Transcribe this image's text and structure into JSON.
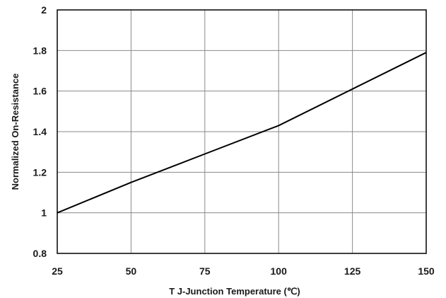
{
  "chart_data": {
    "type": "line",
    "xlabel": "T J-Junction Temperature (℃)",
    "ylabel": "Normalized On-Resistance",
    "xlim": [
      25,
      150
    ],
    "ylim": [
      0.8,
      2.0
    ],
    "xticks": [
      25,
      50,
      75,
      100,
      125,
      150
    ],
    "yticks": [
      0.8,
      1.0,
      1.2,
      1.4,
      1.6,
      1.8,
      2.0
    ],
    "xtick_labels": [
      "25",
      "50",
      "75",
      "100",
      "125",
      "150"
    ],
    "ytick_labels": [
      "0.8",
      "1",
      "1.2",
      "1.4",
      "1.6",
      "1.8",
      "2"
    ],
    "grid": true,
    "series": [
      {
        "x": [
          25,
          50,
          75,
          100,
          125,
          150
        ],
        "y": [
          1.0,
          1.15,
          1.29,
          1.43,
          1.61,
          1.79
        ]
      }
    ],
    "colors": {
      "line": "#000000",
      "grid": "#8a8a8a",
      "frame": "#000000"
    }
  }
}
